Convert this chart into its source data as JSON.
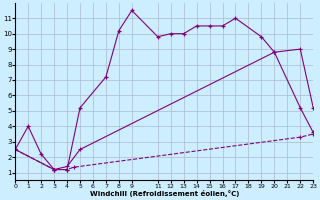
{
  "background_color": "#cceeff",
  "line_color": "#800080",
  "xlabel": "Windchill (Refroidissement éolien,°C)",
  "xlim": [
    0,
    23
  ],
  "ylim": [
    0.5,
    12
  ],
  "xticks": [
    0,
    1,
    2,
    3,
    4,
    5,
    6,
    7,
    8,
    9,
    11,
    12,
    13,
    14,
    15,
    16,
    17,
    18,
    19,
    20,
    21,
    22,
    23
  ],
  "yticks": [
    1,
    2,
    3,
    4,
    5,
    6,
    7,
    8,
    9,
    10,
    11
  ],
  "line1_x": [
    0,
    1,
    2,
    3,
    4,
    5,
    7,
    8,
    9,
    11,
    12,
    13,
    14,
    15,
    16,
    17,
    19,
    20,
    22,
    23
  ],
  "line1_y": [
    2.5,
    4.0,
    2.2,
    1.2,
    1.2,
    5.2,
    7.2,
    10.2,
    11.5,
    9.8,
    10.0,
    10.0,
    10.5,
    10.5,
    10.5,
    11.0,
    9.8,
    8.8,
    5.2,
    3.6
  ],
  "line2_x": [
    0,
    3,
    4,
    4.5,
    22,
    23
  ],
  "line2_y": [
    2.5,
    1.2,
    1.2,
    1.35,
    3.3,
    3.5
  ],
  "line3_x": [
    0,
    3,
    4,
    5,
    20,
    22,
    23
  ],
  "line3_y": [
    2.5,
    1.2,
    1.4,
    2.5,
    8.8,
    9.0,
    5.2
  ]
}
